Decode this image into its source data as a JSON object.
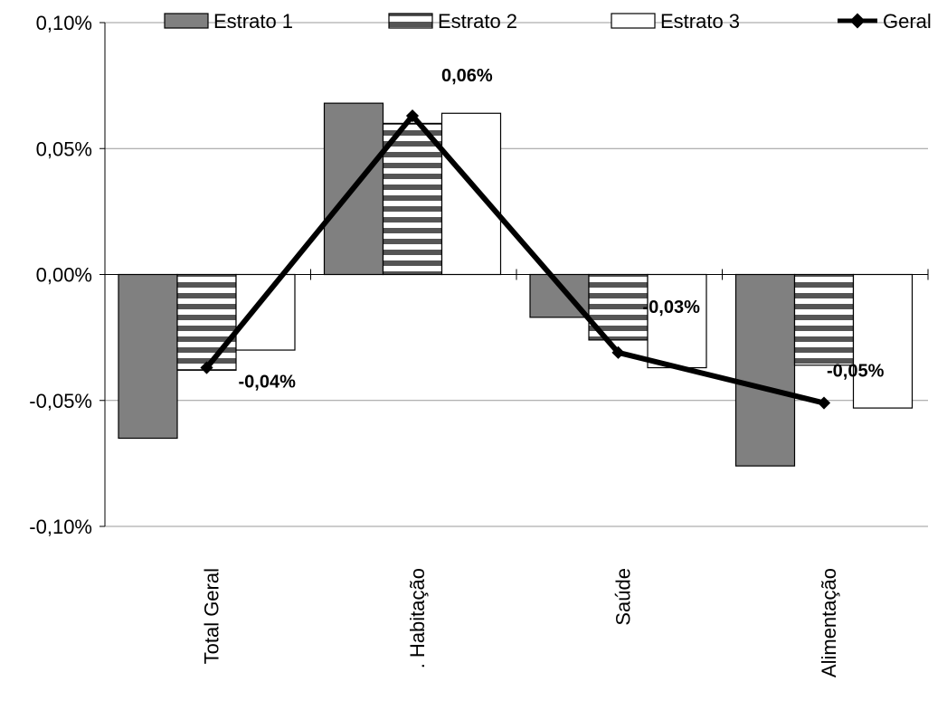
{
  "chart_data": {
    "type": "bar",
    "categories": [
      "Total Geral",
      ". Habitação",
      "Saúde",
      "Alimentação"
    ],
    "series": [
      {
        "name": "Estrato 1",
        "type": "bar",
        "values": [
          -0.065,
          0.068,
          -0.017,
          -0.076
        ]
      },
      {
        "name": "Estrato 2",
        "type": "bar",
        "values": [
          -0.038,
          0.06,
          -0.026,
          -0.036
        ]
      },
      {
        "name": "Estrato 3",
        "type": "bar",
        "values": [
          -0.03,
          0.064,
          -0.037,
          -0.053
        ]
      },
      {
        "name": "Geral",
        "type": "line",
        "values": [
          -0.037,
          0.063,
          -0.031,
          -0.051
        ]
      }
    ],
    "data_labels": [
      "-0,04%",
      "0,06%",
      "-0,03%",
      "-0,05%"
    ],
    "ylim": [
      -0.1,
      0.1
    ],
    "yticks": [
      0.1,
      0.05,
      0.0,
      -0.05,
      -0.1
    ],
    "ytick_labels": [
      "0,10%",
      "0,05%",
      "0,00%",
      "-0,05%",
      "-0,10%"
    ],
    "grid": true,
    "legend_position": "top",
    "colors": {
      "estrato1": "#808080",
      "estrato2_stripe": "#555555",
      "estrato3": "#ffffff",
      "line": "#000000",
      "grid": "#999999"
    }
  }
}
